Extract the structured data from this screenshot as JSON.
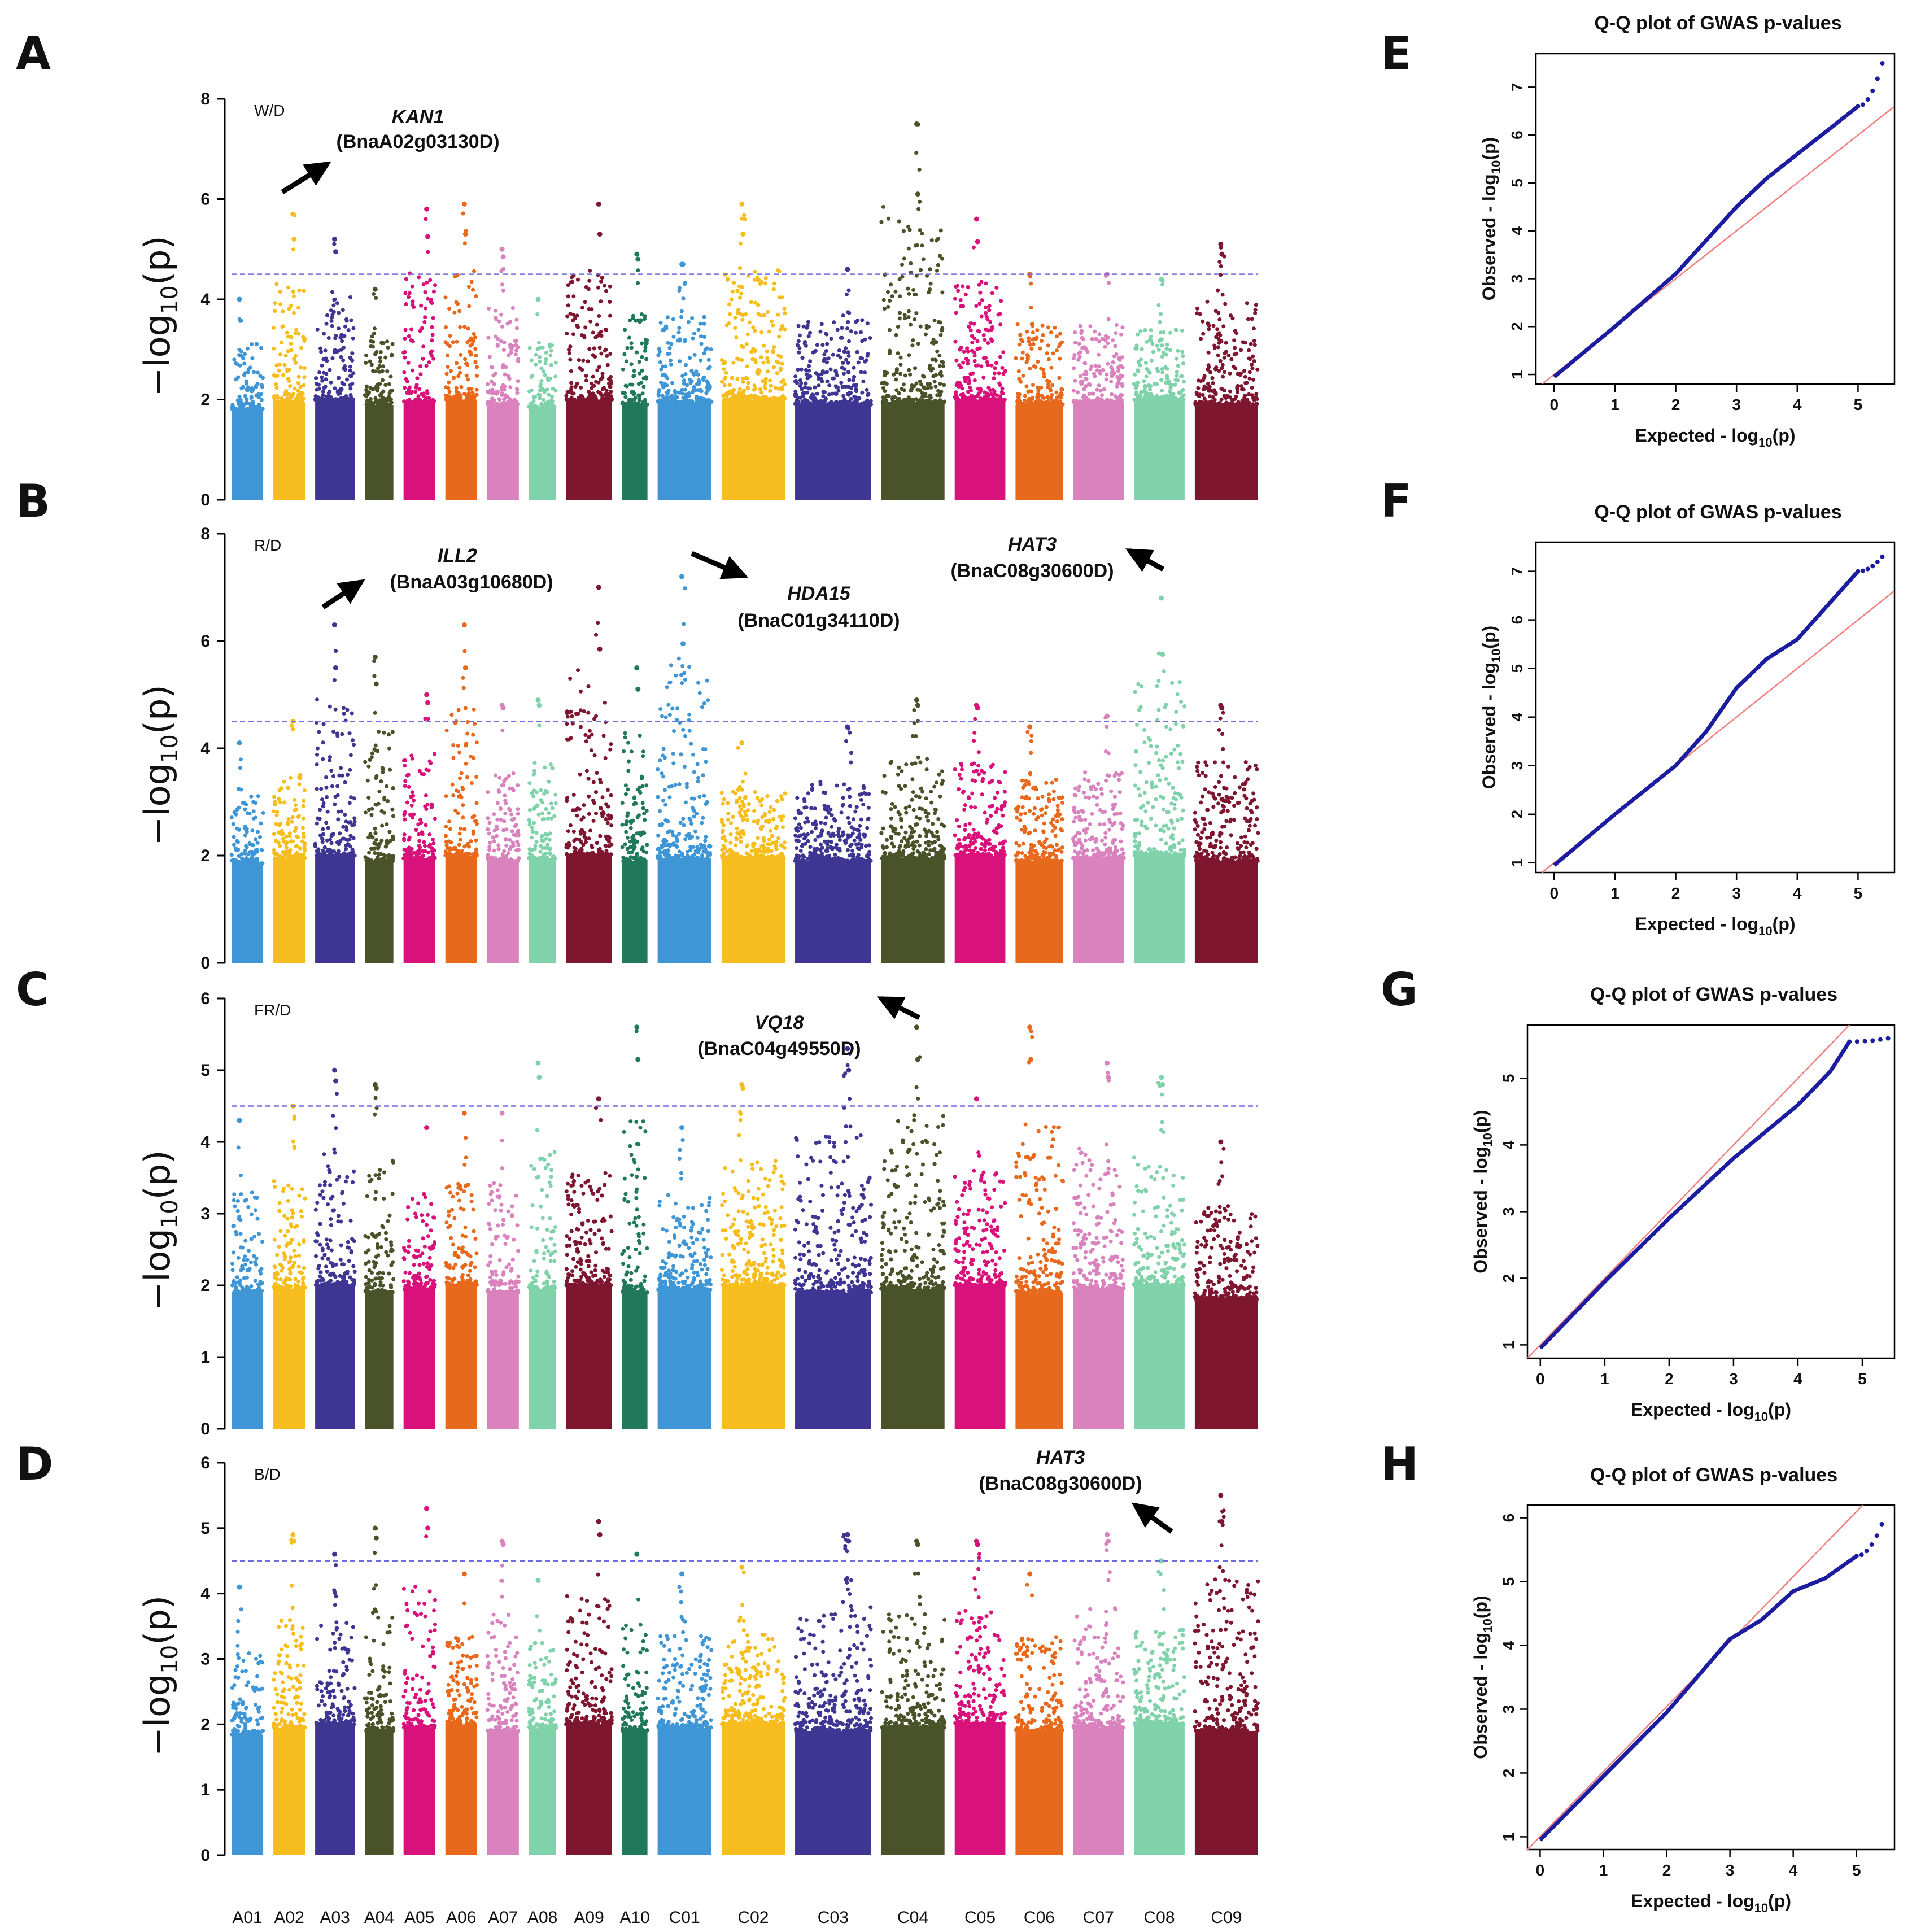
{
  "figure": {
    "panels": {
      "A": "A",
      "B": "B",
      "C": "C",
      "D": "D",
      "E": "E",
      "F": "F",
      "G": "G",
      "H": "H"
    },
    "manhattan_ylabel_main": "−log",
    "manhattan_ylabel_sub": "10",
    "manhattan_ylabel_end": "(p)"
  },
  "chromosomes": [
    {
      "name": "A01",
      "color": "#3f96d6",
      "width": 1.0
    },
    {
      "name": "A02",
      "color": "#f7bd1e",
      "width": 1.0
    },
    {
      "name": "A03",
      "color": "#3f3592",
      "width": 1.25
    },
    {
      "name": "A04",
      "color": "#4a5229",
      "width": 0.9
    },
    {
      "name": "A05",
      "color": "#d8127a",
      "width": 1.0
    },
    {
      "name": "A06",
      "color": "#e8691c",
      "width": 1.0
    },
    {
      "name": "A07",
      "color": "#d982bd",
      "width": 1.0
    },
    {
      "name": "A08",
      "color": "#7fd2a9",
      "width": 0.85
    },
    {
      "name": "A09",
      "color": "#7e162f",
      "width": 1.45
    },
    {
      "name": "A10",
      "color": "#21795c",
      "width": 0.8
    },
    {
      "name": "C01",
      "color": "#3f96d6",
      "width": 1.7
    },
    {
      "name": "C02",
      "color": "#f7bd1e",
      "width": 2.0
    },
    {
      "name": "C03",
      "color": "#3f3592",
      "width": 2.4
    },
    {
      "name": "C04",
      "color": "#4a5229",
      "width": 2.0
    },
    {
      "name": "C05",
      "color": "#d8127a",
      "width": 1.6
    },
    {
      "name": "C06",
      "color": "#e8691c",
      "width": 1.5
    },
    {
      "name": "C07",
      "color": "#d982bd",
      "width": 1.6
    },
    {
      "name": "C08",
      "color": "#7fd2a9",
      "width": 1.6
    },
    {
      "name": "C09",
      "color": "#7e162f",
      "width": 2.0
    }
  ],
  "chart_data": [
    {
      "type": "scatter",
      "panel": "A",
      "subtitle": "W/D",
      "ylabel": "-log10(p)",
      "ylim": [
        0,
        8
      ],
      "yticks": [
        0,
        2,
        4,
        6,
        8
      ],
      "threshold": 4.5,
      "chromosome_peaks": [
        4.0,
        5.7,
        5.2,
        4.2,
        5.8,
        5.9,
        5.0,
        4.0,
        5.9,
        4.9,
        4.7,
        5.9,
        4.6,
        7.5,
        5.6,
        4.5,
        4.5,
        4.4,
        5.1
      ],
      "annotations": [
        {
          "gene": "KAN1",
          "id": "(BnaA02g03130D)",
          "chromosome": "A02",
          "arrow": "up-right"
        }
      ]
    },
    {
      "type": "scatter",
      "panel": "B",
      "subtitle": "R/D",
      "ylabel": "-log10(p)",
      "ylim": [
        0,
        8
      ],
      "yticks": [
        0,
        2,
        4,
        6,
        8
      ],
      "threshold": 4.5,
      "chromosome_peaks": [
        4.1,
        4.5,
        6.3,
        5.7,
        5.0,
        6.3,
        4.8,
        4.9,
        7.0,
        5.5,
        7.2,
        4.1,
        4.4,
        4.9,
        4.8,
        4.4,
        4.6,
        6.8,
        4.8
      ],
      "annotations": [
        {
          "gene": "ILL2",
          "id": "(BnaA03g10680D)",
          "chromosome": "A03",
          "arrow": "up-right"
        },
        {
          "gene": "HDA15",
          "id": "(BnaC01g34110D)",
          "chromosome": "C01",
          "arrow": "down-right"
        },
        {
          "gene": "HAT3",
          "id": "(BnaC08g30600D)",
          "chromosome": "C08",
          "arrow": "up-left"
        }
      ]
    },
    {
      "type": "scatter",
      "panel": "C",
      "subtitle": "FR/D",
      "ylabel": "-log10(p)",
      "ylim": [
        0,
        6
      ],
      "yticks": [
        0,
        1,
        2,
        3,
        4,
        5,
        6
      ],
      "threshold": 4.5,
      "chromosome_peaks": [
        4.3,
        4.5,
        5.0,
        4.8,
        4.2,
        4.4,
        4.4,
        5.1,
        4.6,
        5.6,
        4.2,
        4.8,
        5.3,
        5.6,
        4.6,
        5.6,
        5.1,
        4.9,
        4.0
      ],
      "annotations": [
        {
          "gene": "VQ18",
          "id": "(BnaC04g49550D)",
          "chromosome": "C04",
          "arrow": "up-left"
        }
      ]
    },
    {
      "type": "scatter",
      "panel": "D",
      "subtitle": "B/D",
      "ylabel": "-log10(p)",
      "ylim": [
        0,
        6
      ],
      "yticks": [
        0,
        1,
        2,
        3,
        4,
        5,
        6
      ],
      "threshold": 4.5,
      "chromosome_peaks": [
        4.1,
        4.9,
        4.6,
        5.0,
        5.3,
        4.3,
        4.8,
        4.2,
        5.1,
        4.6,
        4.3,
        4.4,
        4.9,
        4.8,
        4.8,
        4.3,
        4.9,
        4.5,
        5.5
      ],
      "annotations": [
        {
          "gene": "HAT3",
          "id": "(BnaC08g30600D)",
          "chromosome": "C08",
          "arrow": "up-left"
        }
      ]
    },
    {
      "type": "scatter",
      "panel": "E",
      "title": "Q-Q plot of GWAS p-values",
      "xlabel_main": "Expected  - log",
      "xlabel_sub": "10",
      "xlabel_end": "(p)",
      "ylabel_main": "Observed  - log",
      "ylabel_sub": "10",
      "ylabel_end": "(p)",
      "xlim": [
        -0.3,
        5.6
      ],
      "ylim": [
        0.8,
        7.7
      ],
      "xticks": [
        0,
        1,
        2,
        3,
        4,
        5
      ],
      "yticks": [
        1,
        2,
        3,
        4,
        5,
        6,
        7
      ],
      "curve": [
        [
          0,
          0.95
        ],
        [
          1,
          2.0
        ],
        [
          2,
          3.1
        ],
        [
          2.5,
          3.8
        ],
        [
          3,
          4.5
        ],
        [
          3.5,
          5.1
        ],
        [
          4,
          5.6
        ],
        [
          4.5,
          6.1
        ],
        [
          5,
          6.6
        ],
        [
          5.4,
          7.5
        ]
      ],
      "expected_line": [
        [
          -0.2,
          0.8
        ],
        [
          5.6,
          6.6
        ]
      ]
    },
    {
      "type": "scatter",
      "panel": "F",
      "title": "Q-Q plot of GWAS p-values",
      "xlabel_main": "Expected  - log",
      "xlabel_sub": "10",
      "xlabel_end": "(p)",
      "ylabel_main": "Observed  - log",
      "ylabel_sub": "10",
      "ylabel_end": "(p)",
      "xlim": [
        -0.3,
        5.6
      ],
      "ylim": [
        0.8,
        7.6
      ],
      "xticks": [
        0,
        1,
        2,
        3,
        4,
        5
      ],
      "yticks": [
        1,
        2,
        3,
        4,
        5,
        6,
        7
      ],
      "curve": [
        [
          0,
          0.95
        ],
        [
          1,
          2.0
        ],
        [
          2,
          3.0
        ],
        [
          2.5,
          3.7
        ],
        [
          3,
          4.6
        ],
        [
          3.5,
          5.2
        ],
        [
          4,
          5.6
        ],
        [
          4.5,
          6.3
        ],
        [
          5,
          7.0
        ],
        [
          5.4,
          7.3
        ]
      ],
      "expected_line": [
        [
          -0.2,
          0.8
        ],
        [
          5.6,
          6.6
        ]
      ]
    },
    {
      "type": "scatter",
      "panel": "G",
      "title": "Q-Q plot of GWAS p-values",
      "xlabel_main": "Expected  - log",
      "xlabel_sub": "10",
      "xlabel_end": "(p)",
      "ylabel_main": "Observed  - log",
      "ylabel_sub": "10",
      "ylabel_end": "(p)",
      "xlim": [
        -0.2,
        5.5
      ],
      "ylim": [
        0.8,
        5.8
      ],
      "xticks": [
        0,
        1,
        2,
        3,
        4,
        5
      ],
      "yticks": [
        1,
        2,
        3,
        4,
        5
      ],
      "curve": [
        [
          0,
          0.95
        ],
        [
          1,
          1.95
        ],
        [
          2,
          2.9
        ],
        [
          2.5,
          3.35
        ],
        [
          3,
          3.8
        ],
        [
          3.5,
          4.2
        ],
        [
          4,
          4.6
        ],
        [
          4.5,
          5.1
        ],
        [
          4.8,
          5.55
        ],
        [
          5.4,
          5.6
        ]
      ],
      "expected_line": [
        [
          -0.2,
          0.8
        ],
        [
          4.8,
          5.8
        ]
      ]
    },
    {
      "type": "scatter",
      "panel": "H",
      "title": "Q-Q plot of GWAS p-values",
      "xlabel_main": "Expected  - log",
      "xlabel_sub": "10",
      "xlabel_end": "(p)",
      "ylabel_main": "Observed  - log",
      "ylabel_sub": "10",
      "ylabel_end": "(p)",
      "xlim": [
        -0.2,
        5.6
      ],
      "ylim": [
        0.8,
        6.2
      ],
      "xticks": [
        0,
        1,
        2,
        3,
        4,
        5
      ],
      "yticks": [
        1,
        2,
        3,
        4,
        5,
        6
      ],
      "curve": [
        [
          0,
          0.95
        ],
        [
          1,
          1.95
        ],
        [
          2,
          2.95
        ],
        [
          3,
          4.1
        ],
        [
          3.5,
          4.4
        ],
        [
          4,
          4.85
        ],
        [
          4.5,
          5.05
        ],
        [
          5,
          5.4
        ],
        [
          5.4,
          5.9
        ]
      ],
      "expected_line": [
        [
          -0.2,
          0.8
        ],
        [
          5.1,
          6.2
        ]
      ]
    }
  ]
}
